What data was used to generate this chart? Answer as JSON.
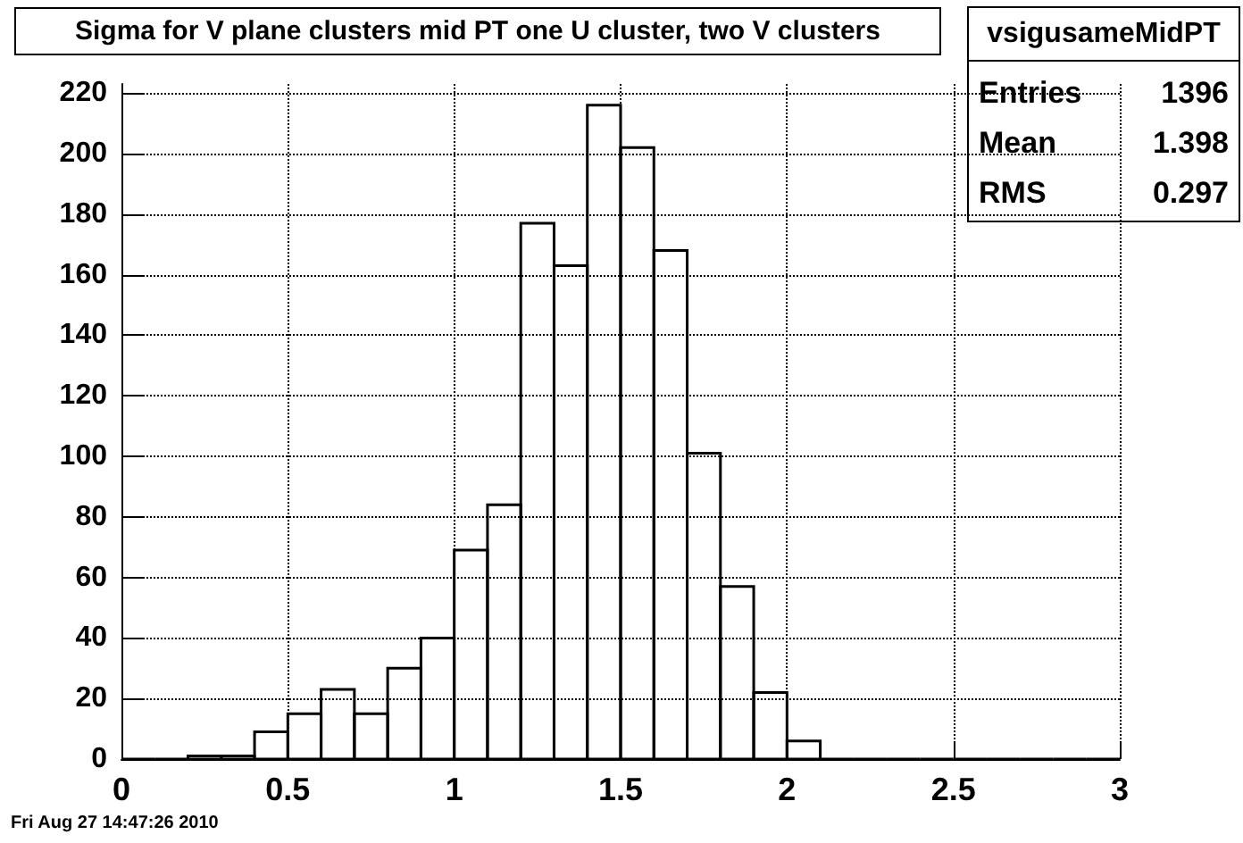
{
  "chart_data": {
    "type": "histogram",
    "title": "Sigma for V plane clusters mid PT one U cluster, two V clusters",
    "bins": [
      0,
      0.1,
      0.2,
      0.3,
      0.4,
      0.5,
      0.6,
      0.7,
      0.8,
      0.9,
      1.0,
      1.1,
      1.2,
      1.3,
      1.4,
      1.5,
      1.6,
      1.7,
      1.8,
      1.9,
      2.0,
      2.1,
      2.2,
      2.3,
      2.4,
      2.5,
      2.6,
      2.7,
      2.8,
      2.9,
      3.0
    ],
    "values": [
      0,
      0,
      1,
      1,
      9,
      15,
      23,
      15,
      30,
      40,
      69,
      84,
      177,
      163,
      216,
      202,
      168,
      101,
      57,
      22,
      6,
      0,
      0,
      0,
      0,
      0,
      0,
      0,
      0,
      0
    ],
    "color": "#000000",
    "xlim": [
      0,
      3
    ],
    "xticks": [
      0,
      {
        "value": 0.5,
        "label": "0.5"
      },
      1,
      {
        "value": 1.5,
        "label": "1.5"
      },
      2,
      {
        "value": 2.5,
        "label": "2.5"
      },
      3
    ],
    "ylim": [
      0,
      223
    ],
    "yticks": [
      0,
      20,
      40,
      60,
      80,
      100,
      120,
      140,
      160,
      180,
      200,
      220
    ],
    "grid": true,
    "annotations": [
      "vsigusameMidPT",
      "Entries 1396",
      "Mean 1.398",
      "RMS 0.297",
      "Fri Aug 27 14:47:26 2010"
    ]
  }
}
